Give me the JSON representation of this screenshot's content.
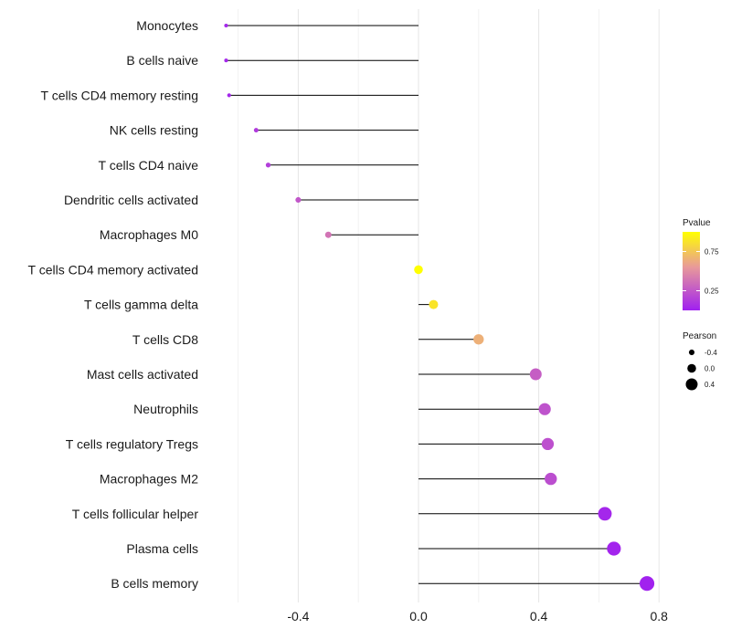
{
  "chart_data": {
    "type": "lollipop",
    "title": "",
    "xlabel": "",
    "ylabel": "",
    "xlim": [
      -0.6,
      0.8
    ],
    "xticks": [
      -0.4,
      0.0,
      0.4,
      0.8
    ],
    "xtick_labels": [
      "-0.4",
      "0.0",
      "0.4",
      "0.8"
    ],
    "grid": true,
    "legend_position": "right",
    "categories": [
      "Monocytes",
      "B cells naive",
      "T cells CD4 memory resting",
      "NK cells resting",
      "T cells CD4 naive",
      "Dendritic cells activated",
      "Macrophages M0",
      "T cells CD4 memory activated",
      "T cells gamma delta",
      "T cells CD8",
      "Mast cells activated",
      "Neutrophils",
      "T cells regulatory  Tregs",
      "Macrophages M2",
      "T cells follicular helper",
      "Plasma cells",
      "B cells memory"
    ],
    "pearson": [
      -0.64,
      -0.64,
      -0.63,
      -0.54,
      -0.5,
      -0.4,
      -0.3,
      0.0,
      0.05,
      0.2,
      0.39,
      0.42,
      0.43,
      0.44,
      0.62,
      0.65,
      0.76
    ],
    "pvalue": [
      0.03,
      0.03,
      0.03,
      0.12,
      0.14,
      0.25,
      0.38,
      1.0,
      0.88,
      0.65,
      0.28,
      0.23,
      0.22,
      0.21,
      0.03,
      0.02,
      0.01
    ],
    "legend_color": {
      "title": "Pvalue",
      "ticks": [
        0.25,
        0.75
      ],
      "tick_labels": [
        "0.25",
        "0.75"
      ],
      "range": [
        0.0,
        1.0
      ],
      "low_color": "#A020F0",
      "mid_color": "#E8999A",
      "high_color": "#FFFF00"
    },
    "legend_size": {
      "title": "Pearson",
      "values": [
        -0.4,
        0.0,
        0.4
      ],
      "labels": [
        "-0.4",
        "0.0",
        "0.4"
      ]
    }
  }
}
